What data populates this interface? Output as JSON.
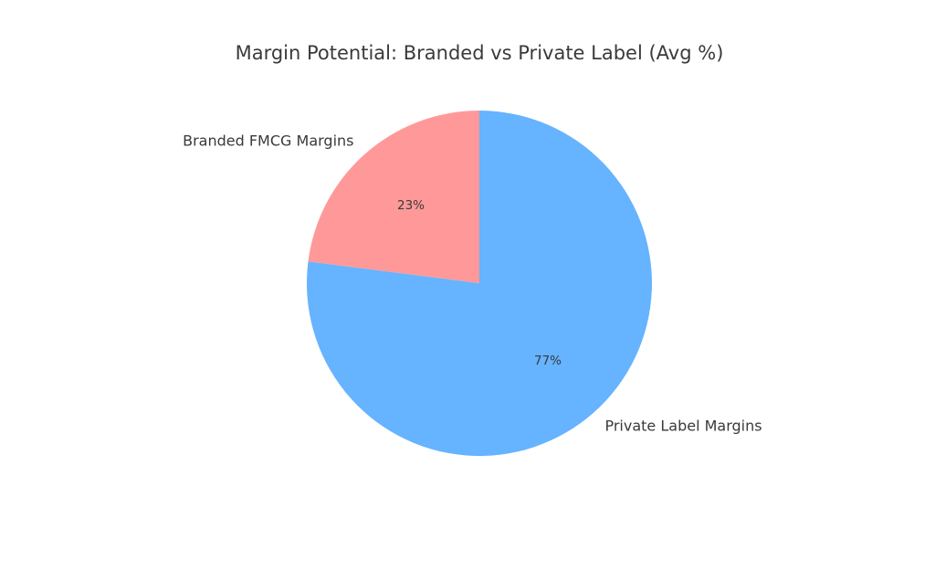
{
  "chart_data": {
    "type": "pie",
    "title": "Margin Potential: Branded vs Private Label (Avg %)",
    "categories": [
      "Branded FMCG Margins",
      "Private Label Margins"
    ],
    "values": [
      23,
      77
    ],
    "value_labels": [
      "23%",
      "77%"
    ],
    "colors": [
      "#ff9999",
      "#66b3ff"
    ],
    "start_angle_deg": 90,
    "direction": "counterclockwise",
    "legend": "none"
  }
}
